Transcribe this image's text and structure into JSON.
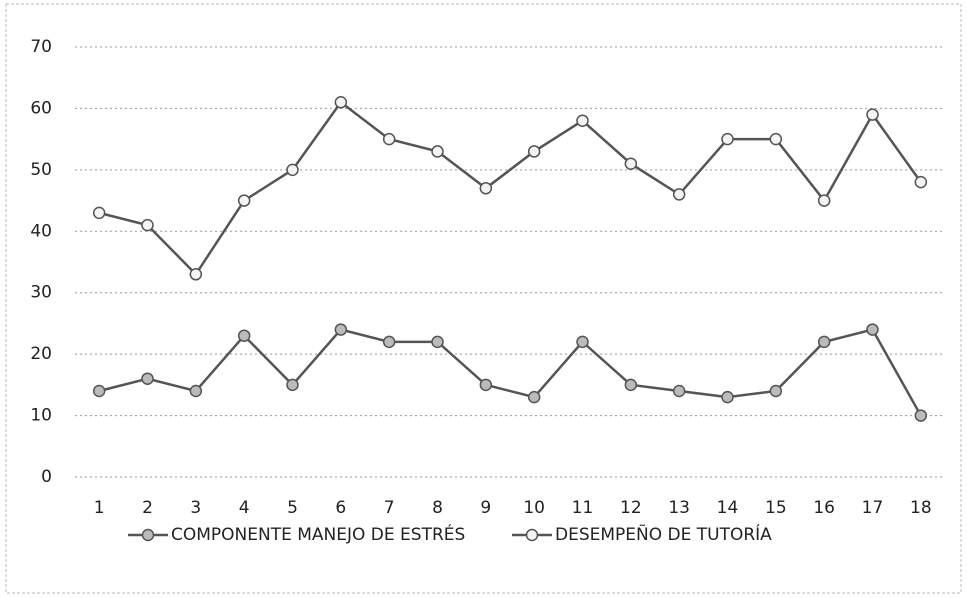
{
  "chart_data": {
    "type": "line",
    "categories": [
      "1",
      "2",
      "3",
      "4",
      "5",
      "6",
      "7",
      "8",
      "9",
      "10",
      "11",
      "12",
      "13",
      "14",
      "15",
      "16",
      "17",
      "18"
    ],
    "series": [
      {
        "name": "COMPONENTE MANEJO DE ESTRÉS",
        "color": "#555555",
        "values": [
          14,
          16,
          14,
          23,
          15,
          24,
          22,
          22,
          15,
          13,
          22,
          15,
          14,
          13,
          14,
          22,
          24,
          10
        ]
      },
      {
        "name": "DESEMPEÑO DE TUTORÍA",
        "color": "#555555",
        "values": [
          43,
          41,
          33,
          45,
          50,
          61,
          55,
          53,
          47,
          53,
          58,
          51,
          46,
          55,
          55,
          45,
          59,
          48
        ]
      }
    ],
    "ylim": [
      0,
      70
    ],
    "yticks": [
      0,
      10,
      20,
      30,
      40,
      50,
      60,
      70
    ],
    "grid": true,
    "legend": "bottom"
  }
}
